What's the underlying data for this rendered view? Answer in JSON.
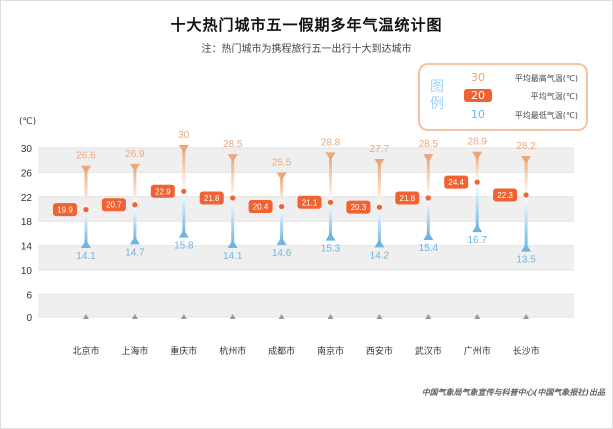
{
  "chart_data": {
    "type": "range",
    "title": "十大热门城市五一假期多年气温统计图",
    "subtitle": "注：热门城市为携程旅行五一出行十大到达城市",
    "ylabel": "(℃)",
    "yticks": [
      30,
      26,
      22,
      18,
      14,
      10,
      6,
      0
    ],
    "ylim": [
      0,
      30
    ],
    "categories": [
      "北京市",
      "上海市",
      "重庆市",
      "杭州市",
      "成都市",
      "南京市",
      "西安市",
      "武汉市",
      "广州市",
      "长沙市"
    ],
    "series": [
      {
        "name": "平均最高气温(℃)",
        "values": [
          26.6,
          26.9,
          30,
          28.5,
          25.5,
          28.8,
          27.7,
          28.5,
          28.9,
          28.2
        ]
      },
      {
        "name": "平均气温(℃)",
        "values": [
          19.9,
          20.7,
          22.9,
          21.8,
          20.4,
          21.1,
          20.3,
          21.8,
          24.4,
          22.3
        ]
      },
      {
        "name": "平均最低气温(℃)",
        "values": [
          14.1,
          14.7,
          15.8,
          14.1,
          14.6,
          15.3,
          14.2,
          15.4,
          16.7,
          13.5
        ]
      }
    ],
    "legend": {
      "title": "图例",
      "placement": "top-right",
      "samples": [
        "30",
        "20",
        "10"
      ]
    },
    "grid": "alternating bands",
    "colors": {
      "high": "#eba77a",
      "mean": "#f06232",
      "low": "#6db5e2",
      "band": "#efefef"
    },
    "source": "中国气象局气象宣传与科普中心(中国气象报社)出品"
  }
}
